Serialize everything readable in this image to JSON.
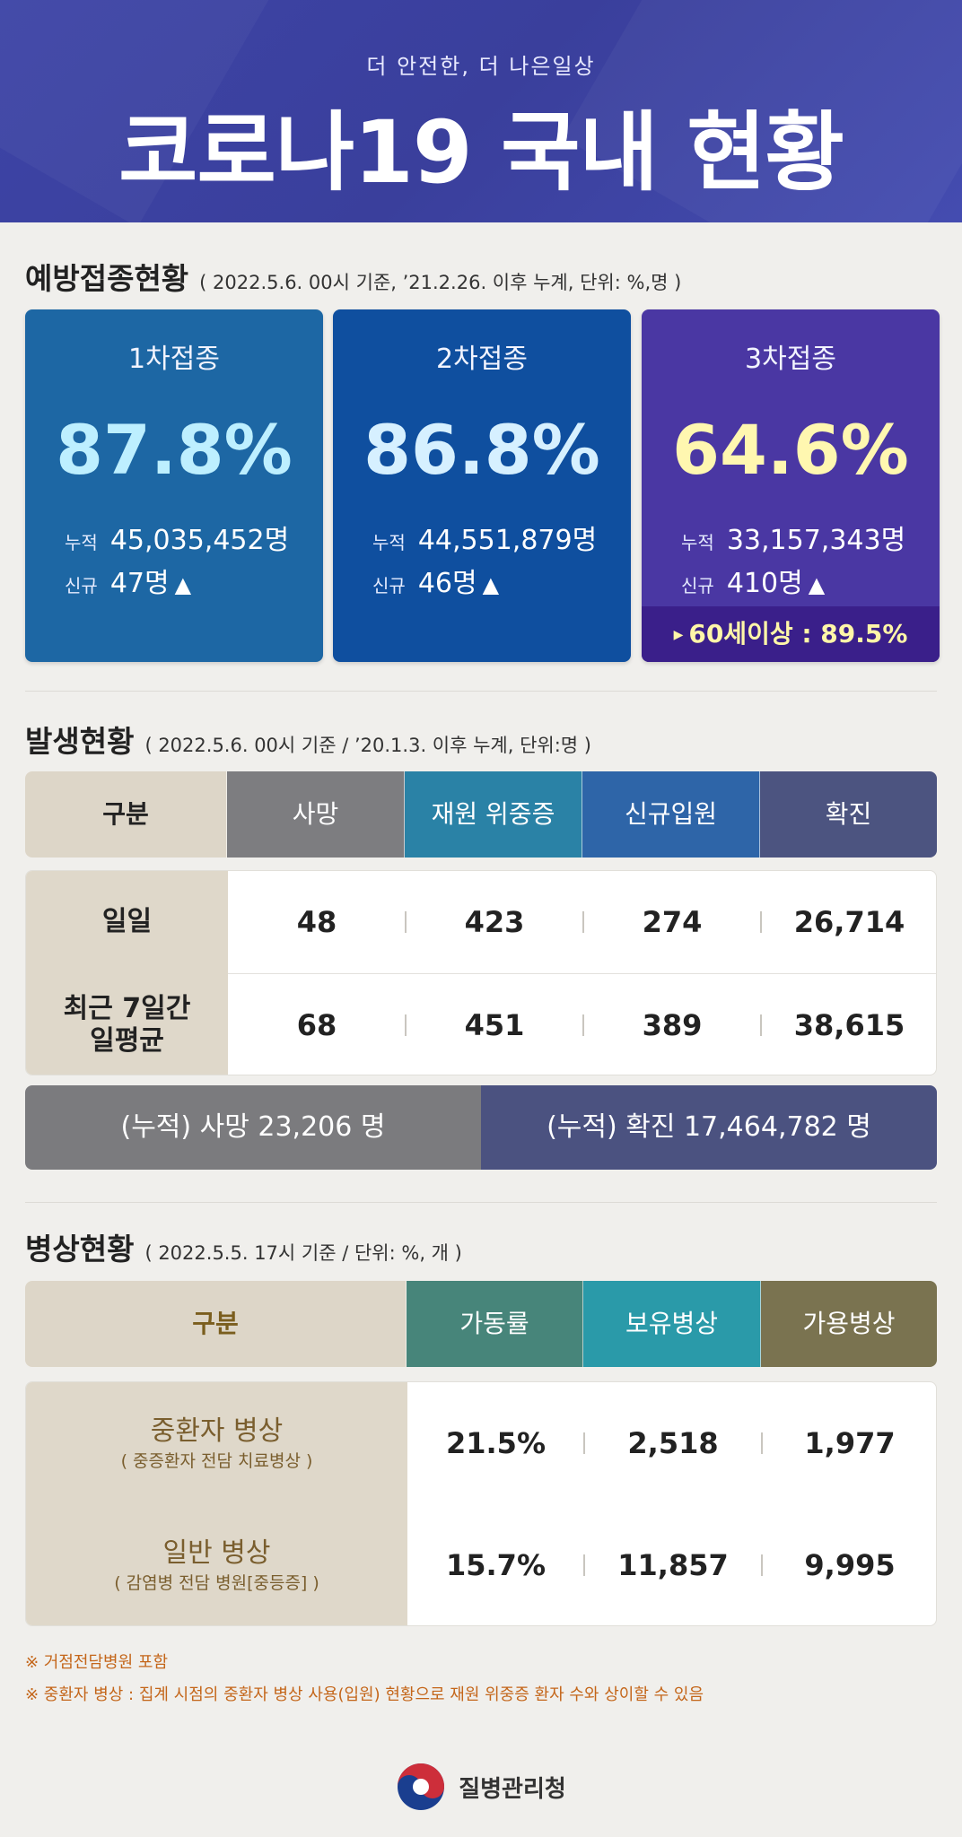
{
  "header": {
    "subtitle": "더 안전한, 더 나은일상",
    "title": "코로나19 국내 현황"
  },
  "vaccination": {
    "title": "예방접종현황",
    "note": "( 2022.5.6. 00시 기준, ’21.2.26. 이후 누계, 단위: %,명 )",
    "cards": [
      {
        "title": "1차접종",
        "percent": "87.8%",
        "cum_label": "누적",
        "cum_value": "45,035,452명",
        "new_label": "신규",
        "new_value": "47명",
        "arrow": "▲",
        "color": "#1d67a4",
        "pct_color": "#bdefff"
      },
      {
        "title": "2차접종",
        "percent": "86.8%",
        "cum_label": "누적",
        "cum_value": "44,551,879명",
        "new_label": "신규",
        "new_value": "46명",
        "arrow": "▲",
        "color": "#0f4f9f",
        "pct_color": "#d6f0ff"
      },
      {
        "title": "3차접종",
        "percent": "64.6%",
        "cum_label": "누적",
        "cum_value": "33,157,343명",
        "new_label": "신규",
        "new_value": "410명",
        "arrow": "▲",
        "color": "#4a37a3",
        "pct_color": "#fff7b0",
        "band": "60세이상 : 89.5%",
        "band_arrow": "▶"
      }
    ]
  },
  "occurrence": {
    "title": "발생현황",
    "note": "( 2022.5.6. 00시 기준 / ’20.1.3. 이후 누계, 단위:명 )",
    "headers": [
      {
        "label": "구분",
        "color": "#ddd6c8",
        "text_color": "#222222"
      },
      {
        "label": "사망",
        "color": "#7d7d80",
        "text_color": "#ffffff"
      },
      {
        "label": "재원 위중증",
        "color": "#2a82a6",
        "text_color": "#ffffff"
      },
      {
        "label": "신규입원",
        "color": "#2e65a8",
        "text_color": "#ffffff"
      },
      {
        "label": "확진",
        "color": "#4c5480",
        "text_color": "#ffffff"
      }
    ],
    "rows": [
      {
        "label": "일일",
        "values": [
          "48",
          "423",
          "274",
          "26,714"
        ]
      },
      {
        "label": "최근 7일간\n일평균",
        "values": [
          "68",
          "451",
          "389",
          "38,615"
        ]
      }
    ],
    "cumulative": {
      "death": "(누적) 사망  23,206 명",
      "confirmed": "(누적) 확진   17,464,782 명",
      "death_color": "#7b7b7e",
      "confirmed_color": "#4b5280"
    }
  },
  "beds": {
    "title": "병상현황",
    "note": "( 2022.5.5. 17시 기준 / 단위: %, 개 )",
    "headers": [
      {
        "label": "구분",
        "color": "#ddd6c8",
        "text_color": "#7a5e1e"
      },
      {
        "label": "가동률",
        "color": "#47857a",
        "text_color": "#ffffff"
      },
      {
        "label": "보유병상",
        "color": "#2a9aa9",
        "text_color": "#ffffff"
      },
      {
        "label": "가용병상",
        "color": "#7a7350",
        "text_color": "#ffffff"
      }
    ],
    "rows": [
      {
        "label": "중환자 병상",
        "sub": "( 중증환자 전담 치료병상 )",
        "values": [
          "21.5%",
          "2,518",
          "1,977"
        ]
      },
      {
        "label": "일반 병상",
        "sub": "( 감염병 전담 병원[중등증] )",
        "values": [
          "15.7%",
          "11,857",
          "9,995"
        ]
      }
    ]
  },
  "notes": [
    "※ 거점전담병원 포함",
    "※ 중환자 병상 : 집계 시점의 중환자 병상 사용(입원) 현황으로 재원 위중증 환자 수와 상이할 수 있음"
  ],
  "footer": {
    "org": "질병관리청",
    "logo_icon": "taegeuk-logo-icon"
  }
}
